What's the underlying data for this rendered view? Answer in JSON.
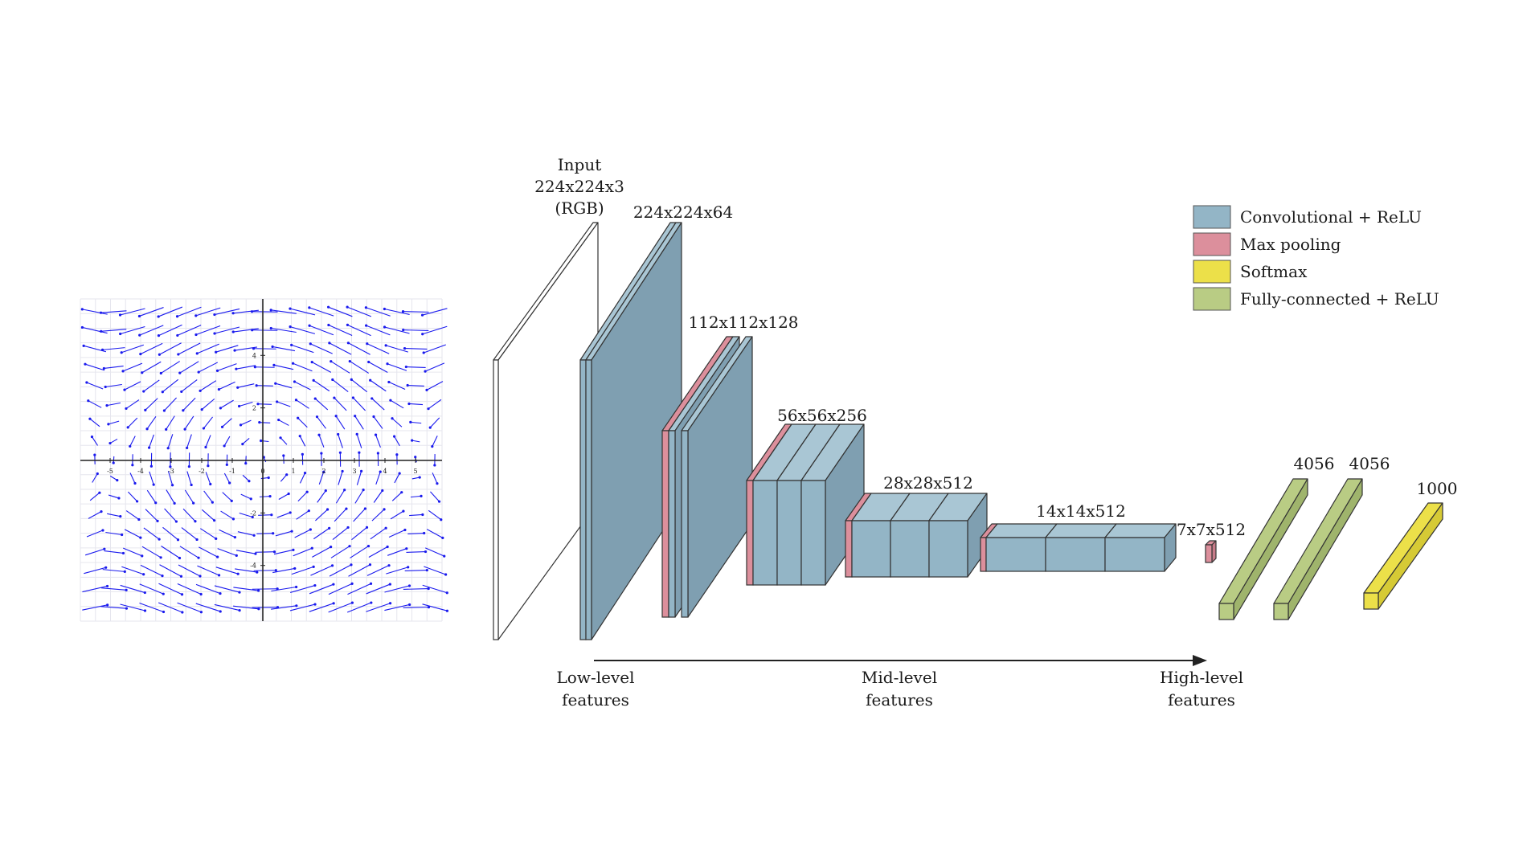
{
  "vector_field": {
    "description_hidden": "",
    "arrow_color": "#1a1aee",
    "grid_color": "#e6e6ee",
    "axis_color": "#222222",
    "x_ticks": [
      "-5",
      "-4",
      "-3",
      "-2",
      "-1",
      "0",
      "1",
      "2",
      "3",
      "4",
      "5"
    ],
    "y_ticks": [
      "4",
      "2",
      "-2",
      "-4"
    ]
  },
  "architecture": {
    "input_label": [
      "Input",
      "224x224x3",
      "(RGB)"
    ],
    "block_labels": [
      "224x224x64",
      "112x112x128",
      "56x56x256",
      "28x28x512",
      "14x14x512",
      "7x7x512"
    ],
    "fc_labels": [
      "4056",
      "4056",
      "1000"
    ],
    "feature_labels": {
      "low": [
        "Low-level",
        "features"
      ],
      "mid": [
        "Mid-level",
        "features"
      ],
      "high": [
        "High-level",
        "features"
      ]
    }
  },
  "legend": {
    "items": [
      {
        "label": "Convolutional + ReLU",
        "color": "#93b5c6"
      },
      {
        "label": "Max pooling",
        "color": "#dc8f9c"
      },
      {
        "label": "Softmax",
        "color": "#ece049"
      },
      {
        "label": "Fully-connected + ReLU",
        "color": "#b9cc84"
      }
    ]
  },
  "colors": {
    "conv": "#93b5c6",
    "conv_side": "#7f9fb1",
    "conv_top": "#a9c6d4",
    "pool": "#dc8f9c",
    "pool_side": "#c77b89",
    "softmax": "#ece049",
    "softmax_side": "#d6ca35",
    "fc": "#b9cc84",
    "fc_side": "#9fb46c",
    "stroke": "#333333"
  }
}
